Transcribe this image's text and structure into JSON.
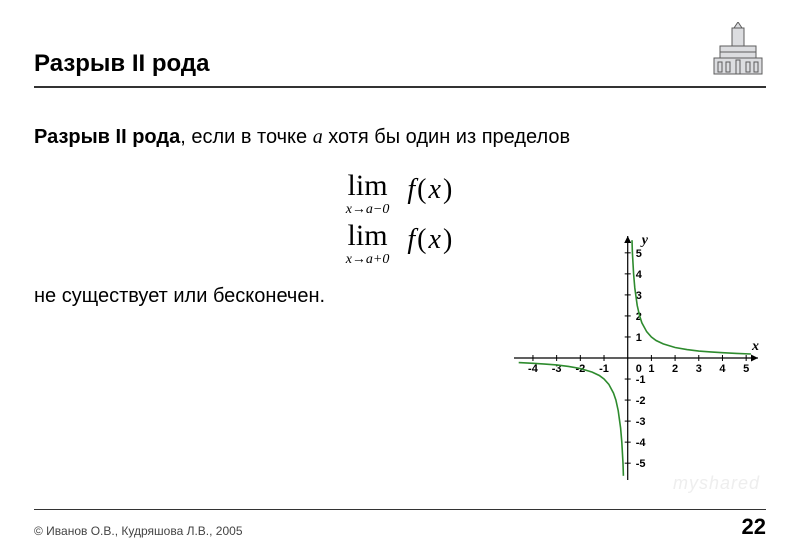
{
  "header": {
    "title": "Разрыв II рода",
    "logo_fill": "#dcdde0",
    "logo_stroke": "#5c5c5c"
  },
  "body": {
    "bold": "Разрыв II рода",
    "after_bold": ", если в точке ",
    "point_var": "a",
    "tail": " хотя бы один из пределов",
    "conclusion": "не существует или бесконечен."
  },
  "formulas": {
    "lim_word": "lim",
    "sub1": "x→a−0",
    "sub2": "x→a+0",
    "fn": "f",
    "arg": "x"
  },
  "chart": {
    "type": "line",
    "xlim": [
      -4.8,
      5.5
    ],
    "ylim": [
      -5.8,
      5.8
    ],
    "xticks": [
      -4,
      -3,
      -2,
      -1,
      1,
      2,
      3,
      4,
      5
    ],
    "yticks": [
      -5,
      -4,
      -3,
      -2,
      -1,
      1,
      2,
      3,
      4,
      5
    ],
    "origin_label": "0",
    "xlabel": "x",
    "ylabel": "y",
    "axis_color": "#000000",
    "tick_fontsize": 11,
    "label_fontsize": 14,
    "curve_color": "#2e8b2e",
    "curve_width": 1.6,
    "background_color": "#ffffff",
    "branch_left": [
      [
        -4.6,
        -0.22
      ],
      [
        -4.0,
        -0.25
      ],
      [
        -3.5,
        -0.29
      ],
      [
        -3.0,
        -0.33
      ],
      [
        -2.5,
        -0.4
      ],
      [
        -2.0,
        -0.5
      ],
      [
        -1.5,
        -0.67
      ],
      [
        -1.2,
        -0.83
      ],
      [
        -1.0,
        -1.0
      ],
      [
        -0.8,
        -1.25
      ],
      [
        -0.6,
        -1.67
      ],
      [
        -0.5,
        -2.0
      ],
      [
        -0.4,
        -2.5
      ],
      [
        -0.3,
        -3.33
      ],
      [
        -0.25,
        -4.0
      ],
      [
        -0.2,
        -5.0
      ],
      [
        -0.18,
        -5.6
      ]
    ],
    "branch_right": [
      [
        0.18,
        5.6
      ],
      [
        0.2,
        5.0
      ],
      [
        0.25,
        4.0
      ],
      [
        0.3,
        3.33
      ],
      [
        0.4,
        2.5
      ],
      [
        0.5,
        2.0
      ],
      [
        0.6,
        1.67
      ],
      [
        0.8,
        1.25
      ],
      [
        1.0,
        1.0
      ],
      [
        1.2,
        0.83
      ],
      [
        1.5,
        0.67
      ],
      [
        2.0,
        0.5
      ],
      [
        2.5,
        0.4
      ],
      [
        3.0,
        0.33
      ],
      [
        3.5,
        0.29
      ],
      [
        4.0,
        0.25
      ],
      [
        4.6,
        0.22
      ],
      [
        5.2,
        0.19
      ]
    ]
  },
  "footer": {
    "copyright": "© Иванов О.В., Кудряшова Л.В., 2005",
    "page": "22",
    "watermark": "myshared"
  }
}
